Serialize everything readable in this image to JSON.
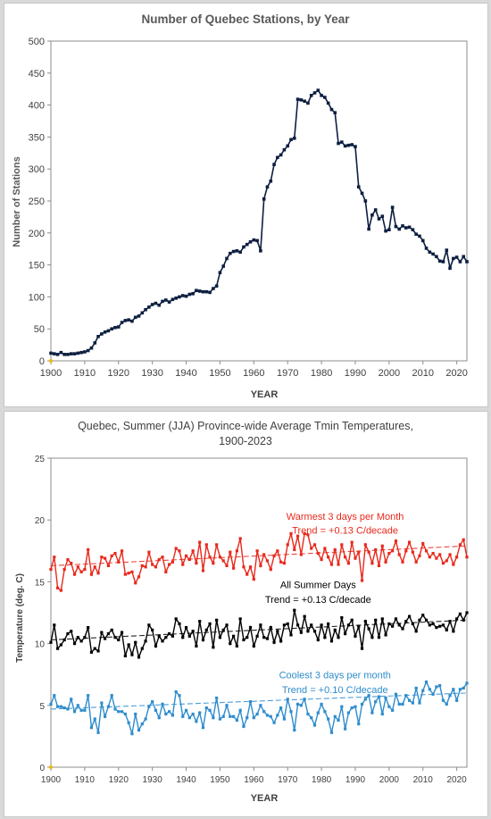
{
  "chart_data": [
    {
      "type": "line",
      "title": "Number of Quebec Stations, by Year",
      "xlabel": "YEAR",
      "ylabel": "Number of Stations",
      "xlim": [
        1900,
        2023
      ],
      "ylim": [
        0,
        500
      ],
      "xticks": [
        "1900",
        "1910",
        "1920",
        "1930",
        "1940",
        "1950",
        "1960",
        "1970",
        "1980",
        "1990",
        "2000",
        "2010",
        "2020"
      ],
      "yticks": [
        "0",
        "50",
        "100",
        "150",
        "200",
        "250",
        "300",
        "350",
        "400",
        "450",
        "500"
      ],
      "grid": false,
      "series": [
        {
          "color": "#0d1f40",
          "points": [
            [
              1900,
              12
            ],
            [
              1901,
              11
            ],
            [
              1902,
              10
            ],
            [
              1903,
              13
            ],
            [
              1904,
              10
            ],
            [
              1905,
              10
            ],
            [
              1906,
              11
            ],
            [
              1907,
              11
            ],
            [
              1908,
              12
            ],
            [
              1909,
              13
            ],
            [
              1910,
              14
            ],
            [
              1911,
              16
            ],
            [
              1912,
              20
            ],
            [
              1913,
              28
            ],
            [
              1914,
              38
            ],
            [
              1915,
              42
            ],
            [
              1916,
              45
            ],
            [
              1917,
              47
            ],
            [
              1918,
              50
            ],
            [
              1919,
              52
            ],
            [
              1920,
              53
            ],
            [
              1921,
              60
            ],
            [
              1922,
              63
            ],
            [
              1923,
              64
            ],
            [
              1924,
              62
            ],
            [
              1925,
              68
            ],
            [
              1926,
              70
            ],
            [
              1927,
              75
            ],
            [
              1928,
              80
            ],
            [
              1929,
              84
            ],
            [
              1930,
              88
            ],
            [
              1931,
              90
            ],
            [
              1932,
              87
            ],
            [
              1933,
              93
            ],
            [
              1934,
              95
            ],
            [
              1935,
              92
            ],
            [
              1936,
              96
            ],
            [
              1937,
              98
            ],
            [
              1938,
              100
            ],
            [
              1939,
              102
            ],
            [
              1940,
              101
            ],
            [
              1941,
              104
            ],
            [
              1942,
              105
            ],
            [
              1943,
              110
            ],
            [
              1944,
              109
            ],
            [
              1945,
              108
            ],
            [
              1946,
              108
            ],
            [
              1947,
              107
            ],
            [
              1948,
              113
            ],
            [
              1949,
              117
            ],
            [
              1950,
              138
            ],
            [
              1951,
              148
            ],
            [
              1952,
              160
            ],
            [
              1953,
              168
            ],
            [
              1954,
              171
            ],
            [
              1955,
              172
            ],
            [
              1956,
              170
            ],
            [
              1957,
              178
            ],
            [
              1958,
              182
            ],
            [
              1959,
              186
            ],
            [
              1960,
              189
            ],
            [
              1961,
              188
            ],
            [
              1962,
              172
            ],
            [
              1963,
              253
            ],
            [
              1964,
              272
            ],
            [
              1965,
              281
            ],
            [
              1966,
              307
            ],
            [
              1967,
              318
            ],
            [
              1968,
              322
            ],
            [
              1969,
              330
            ],
            [
              1970,
              336
            ],
            [
              1971,
              346
            ],
            [
              1972,
              348
            ],
            [
              1973,
              409
            ],
            [
              1974,
              408
            ],
            [
              1975,
              406
            ],
            [
              1976,
              403
            ],
            [
              1977,
              415
            ],
            [
              1978,
              419
            ],
            [
              1979,
              423
            ],
            [
              1980,
              415
            ],
            [
              1981,
              412
            ],
            [
              1982,
              403
            ],
            [
              1983,
              393
            ],
            [
              1984,
              388
            ],
            [
              1985,
              340
            ],
            [
              1986,
              342
            ],
            [
              1987,
              336
            ],
            [
              1988,
              337
            ],
            [
              1989,
              338
            ],
            [
              1990,
              335
            ],
            [
              1991,
              272
            ],
            [
              1992,
              262
            ],
            [
              1993,
              250
            ],
            [
              1994,
              206
            ],
            [
              1995,
              228
            ],
            [
              1996,
              236
            ],
            [
              1997,
              222
            ],
            [
              1998,
              226
            ],
            [
              1999,
              203
            ],
            [
              2000,
              205
            ],
            [
              2001,
              240
            ],
            [
              2002,
              210
            ],
            [
              2003,
              206
            ],
            [
              2004,
              211
            ],
            [
              2005,
              208
            ],
            [
              2006,
              209
            ],
            [
              2007,
              205
            ],
            [
              2008,
              198
            ],
            [
              2009,
              195
            ],
            [
              2010,
              188
            ],
            [
              2011,
              176
            ],
            [
              2012,
              170
            ],
            [
              2013,
              167
            ],
            [
              2014,
              163
            ],
            [
              2015,
              156
            ],
            [
              2016,
              155
            ],
            [
              2017,
              173
            ],
            [
              2018,
              145
            ],
            [
              2019,
              160
            ],
            [
              2020,
              162
            ],
            [
              2021,
              155
            ],
            [
              2022,
              163
            ],
            [
              2023,
              155
            ]
          ]
        }
      ]
    },
    {
      "type": "line",
      "title": "Quebec, Summer (JJA) Province-wide Average Tmin Temperatures,",
      "subtitle": "1900-2023",
      "xlabel": "YEAR",
      "ylabel": "Temperature (deg. C)",
      "xlim": [
        1900,
        2023
      ],
      "ylim": [
        0,
        25
      ],
      "xticks": [
        "1900",
        "1910",
        "1920",
        "1930",
        "1940",
        "1950",
        "1960",
        "1970",
        "1980",
        "1990",
        "2000",
        "2010",
        "2020"
      ],
      "yticks": [
        "0",
        "5",
        "10",
        "15",
        "20",
        "25"
      ],
      "grid": false,
      "annotations": [
        {
          "text": "Warmest 3 days per Month",
          "color": "#e8291c",
          "x": 1987,
          "y": 20.0
        },
        {
          "text": "Trend = +0.13 C/decade",
          "color": "#e8291c",
          "x": 1987,
          "y": 18.9
        },
        {
          "text": "All Summer Days",
          "color": "#000000",
          "x": 1979,
          "y": 14.5
        },
        {
          "text": "Trend = +0.13 C/decade",
          "color": "#000000",
          "x": 1979,
          "y": 13.3
        },
        {
          "text": "Coolest 3 days per month",
          "color": "#2e8ccd",
          "x": 1984,
          "y": 7.2
        },
        {
          "text": "Trend = +0.10 C/decade",
          "color": "#2e8ccd",
          "x": 1984,
          "y": 6.0
        }
      ],
      "series": [
        {
          "name": "Warmest 3 days per Month",
          "color": "#e8291c",
          "trend": [
            [
              1900,
              16.3
            ],
            [
              2023,
              17.9
            ]
          ],
          "y": [
            16.0,
            17.0,
            14.5,
            14.3,
            16.0,
            16.8,
            16.5,
            15.6,
            16.2,
            15.8,
            16.0,
            17.6,
            15.6,
            16.2,
            15.7,
            17.0,
            16.9,
            16.3,
            17.1,
            17.3,
            16.6,
            17.5,
            15.6,
            15.7,
            15.8,
            14.9,
            15.4,
            16.3,
            16.2,
            17.4,
            16.4,
            16.2,
            16.8,
            17.0,
            15.8,
            16.4,
            16.6,
            17.7,
            17.5,
            16.4,
            17.1,
            16.8,
            17.5,
            16.5,
            18.2,
            15.9,
            18.0,
            17.0,
            16.5,
            18.0,
            17.0,
            16.7,
            16.3,
            17.4,
            16.1,
            17.5,
            18.5,
            16.2,
            15.6,
            16.2,
            15.2,
            17.5,
            16.3,
            17.2,
            16.7,
            16.0,
            17.1,
            17.5,
            16.6,
            16.5,
            18.0,
            18.9,
            17.6,
            18.7,
            17.2,
            18.9,
            18.8,
            17.7,
            18.0,
            17.3,
            16.8,
            17.7,
            17.0,
            16.4,
            17.6,
            16.4,
            18.0,
            17.0,
            16.5,
            18.2,
            16.9,
            17.4,
            15.1,
            18.0,
            17.4,
            16.5,
            17.6,
            16.3,
            17.9,
            16.6,
            17.3,
            17.5,
            18.3,
            17.2,
            16.6,
            17.5,
            18.2,
            17.4,
            16.6,
            17.1,
            18.1,
            17.5,
            17.0,
            17.3,
            16.9,
            17.2,
            16.5,
            16.7,
            17.2,
            16.4,
            17.0,
            18.0,
            18.4,
            17.0
          ]
        },
        {
          "name": "All Summer Days",
          "color": "#000000",
          "trend": [
            [
              1900,
              10.3
            ],
            [
              2023,
              11.9
            ]
          ],
          "y": [
            10.1,
            11.5,
            9.6,
            9.9,
            10.3,
            10.8,
            11.0,
            10.0,
            10.5,
            10.2,
            10.5,
            11.3,
            9.3,
            9.6,
            9.4,
            10.9,
            10.4,
            10.8,
            11.1,
            10.5,
            10.3,
            10.9,
            9.0,
            9.9,
            9.1,
            10.1,
            8.9,
            9.6,
            10.2,
            11.5,
            11.1,
            9.8,
            10.6,
            10.2,
            10.5,
            10.8,
            10.6,
            12.0,
            11.6,
            10.5,
            11.3,
            10.6,
            11.0,
            9.8,
            11.8,
            10.3,
            11.1,
            11.6,
            9.7,
            11.9,
            10.5,
            11.1,
            11.5,
            10.0,
            10.6,
            9.8,
            12.0,
            10.3,
            10.5,
            11.3,
            9.8,
            10.6,
            11.5,
            10.5,
            10.4,
            11.3,
            10.1,
            11.0,
            10.2,
            11.5,
            11.6,
            10.7,
            12.7,
            11.5,
            10.9,
            12.2,
            11.0,
            11.5,
            11.0,
            10.3,
            11.5,
            10.5,
            11.6,
            10.2,
            11.1,
            10.5,
            12.1,
            10.8,
            11.5,
            11.9,
            10.6,
            11.4,
            9.6,
            11.8,
            11.2,
            10.5,
            11.9,
            10.5,
            12.0,
            10.7,
            11.6,
            11.4,
            12.0,
            11.5,
            11.2,
            11.8,
            12.2,
            11.6,
            11.0,
            11.9,
            12.3,
            11.9,
            11.5,
            11.6,
            11.3,
            11.4,
            11.5,
            11.1,
            11.8,
            11.0,
            12.0,
            12.4,
            11.9,
            12.5
          ]
        },
        {
          "name": "Coolest 3 days per month",
          "color": "#2e8ccd",
          "trend": [
            [
              1900,
              4.7
            ],
            [
              2023,
              6.0
            ]
          ],
          "y": [
            5.1,
            5.8,
            4.9,
            4.9,
            4.8,
            4.7,
            5.5,
            4.5,
            5.0,
            4.6,
            4.6,
            5.8,
            3.2,
            3.9,
            2.8,
            5.2,
            4.1,
            4.9,
            5.8,
            4.7,
            4.5,
            4.5,
            4.3,
            3.6,
            2.7,
            4.3,
            3.0,
            3.5,
            3.9,
            4.9,
            5.3,
            4.6,
            4.0,
            5.1,
            4.3,
            4.5,
            4.2,
            6.1,
            5.8,
            4.1,
            4.6,
            4.0,
            4.3,
            3.7,
            4.4,
            3.2,
            4.8,
            4.6,
            4.0,
            5.6,
            3.9,
            4.1,
            5.0,
            4.1,
            4.1,
            3.8,
            4.6,
            3.3,
            4.0,
            5.3,
            4.0,
            4.3,
            5.0,
            4.5,
            4.2,
            4.1,
            3.6,
            4.2,
            4.8,
            3.9,
            5.5,
            4.5,
            3.0,
            5.1,
            5.0,
            5.5,
            4.3,
            4.0,
            3.4,
            4.4,
            5.1,
            4.5,
            3.9,
            2.8,
            4.1,
            3.8,
            4.9,
            3.1,
            4.4,
            4.8,
            4.9,
            3.5,
            5.1,
            5.5,
            5.8,
            4.4,
            5.3,
            5.7,
            4.3,
            5.6,
            4.9,
            4.6,
            5.9,
            5.1,
            5.1,
            5.8,
            5.4,
            5.2,
            6.4,
            5.2,
            6.2,
            6.9,
            6.3,
            5.9,
            6.5,
            6.6,
            5.4,
            5.1,
            5.8,
            6.3,
            5.4,
            6.3,
            6.4,
            6.8
          ]
        }
      ]
    }
  ]
}
